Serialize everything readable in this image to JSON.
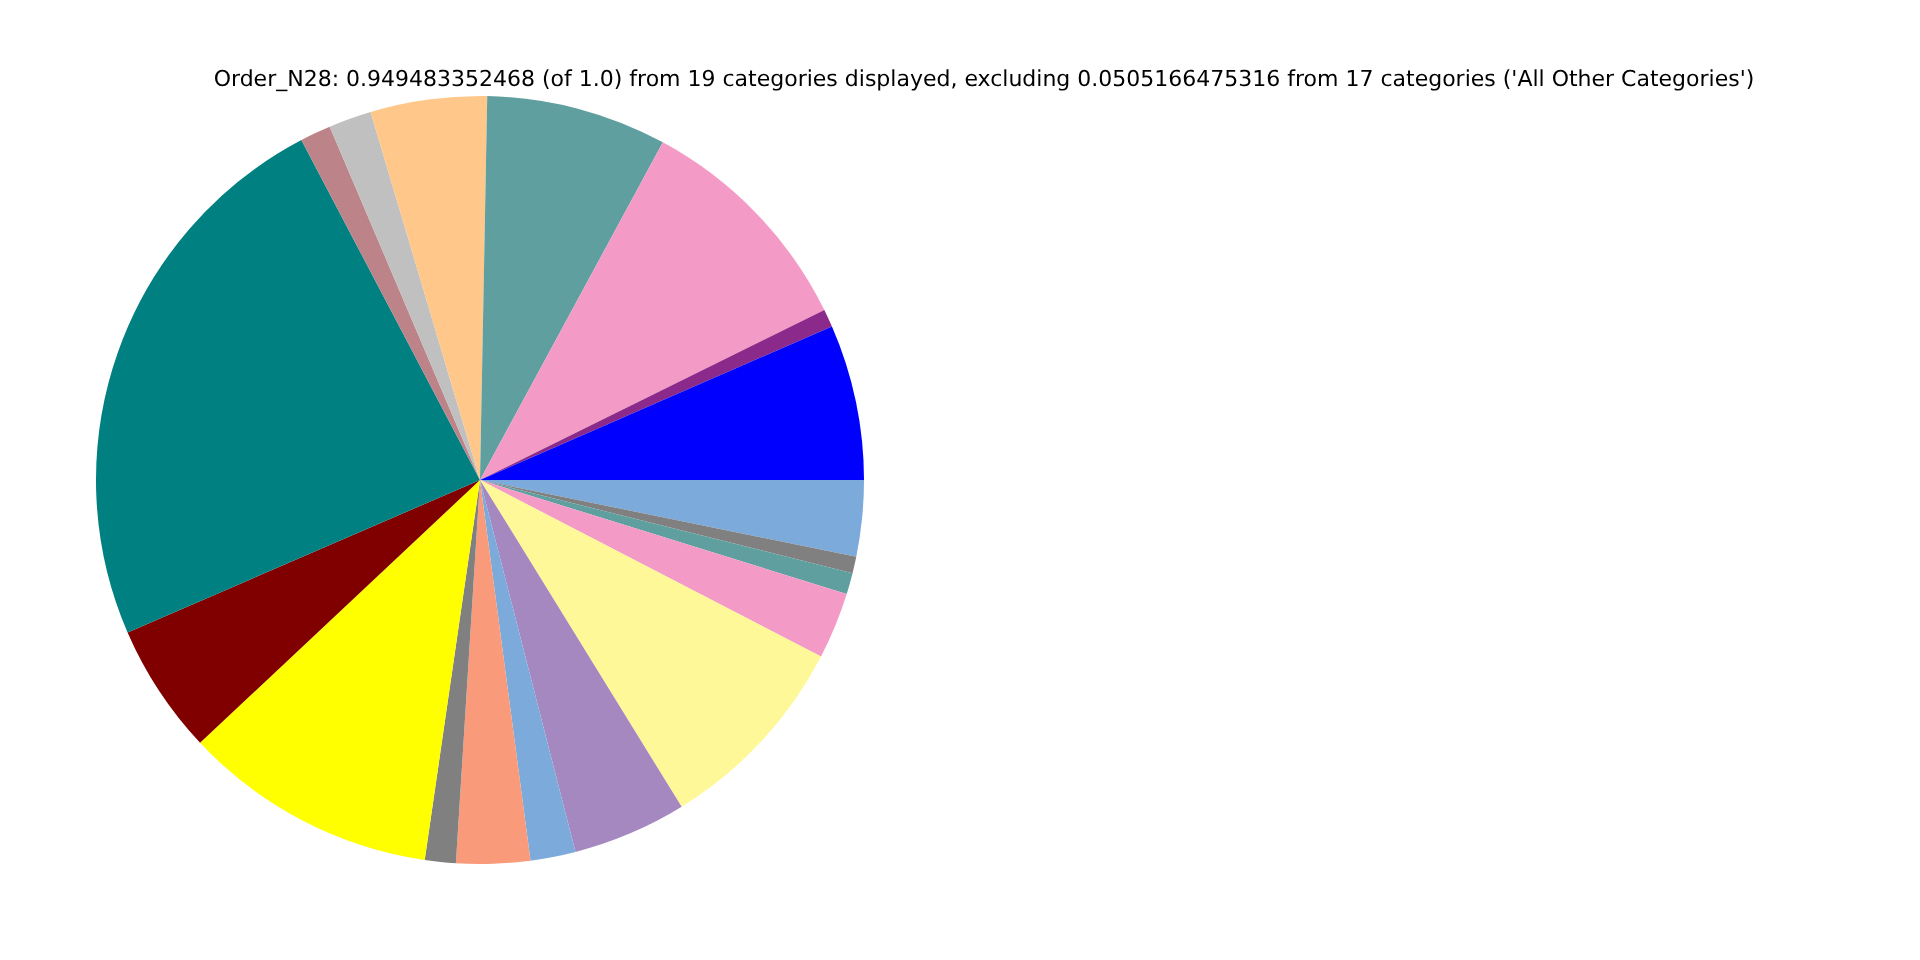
{
  "chart_data": {
    "type": "pie",
    "title": "Order_N28: 0.949483352468 (of 1.0) from 19 categories displayed, excluding 0.0505166475316 from 17 categories ('All Other Categories')",
    "categories": [
      null,
      null,
      null,
      null,
      null,
      null,
      null,
      null,
      null,
      null,
      null,
      null,
      null,
      null,
      null,
      null,
      null,
      null,
      null
    ],
    "values": [
      3.2,
      0.7,
      0.9,
      2.8,
      8.6,
      4.8,
      1.9,
      3.1,
      1.3,
      10.7,
      5.5,
      23.8,
      1.3,
      1.8,
      4.9,
      7.6,
      9.8,
      0.75,
      6.55
    ],
    "colors": [
      "#7caadb",
      "#808080",
      "#5f9f9f",
      "#f49ac6",
      "#fff899",
      "#a688c0",
      "#7caadb",
      "#f99a7a",
      "#808080",
      "#ffff00",
      "#800000",
      "#008080",
      "#bc8388",
      "#c0c0c0",
      "#ffc88a",
      "#5f9f9f",
      "#f49ac6",
      "#8b2a8b",
      "#0000ff"
    ]
  }
}
